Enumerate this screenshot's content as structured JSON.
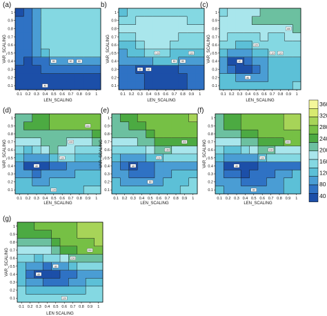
{
  "colors": {
    "levels": [
      "#1c4fa8",
      "#2f72c4",
      "#4a9dd4",
      "#5cc0d7",
      "#84d8e2",
      "#a9e6ec",
      "#6cc0a0",
      "#4caa42",
      "#76c045",
      "#a7d458",
      "#d8ea70",
      "#f4f79a"
    ],
    "contour_line": "#1a1a1a",
    "frame": "#000000"
  },
  "chart_data": {
    "type": "heatmap",
    "description_axes": {
      "xlabel": "LEN_SCALING",
      "ylabel": "VAR_SCALING",
      "x_ticks": [
        "0.1",
        "0.2",
        "0.3",
        "0.4",
        "0.5",
        "0.6",
        "0.7",
        "0.8",
        "0.9",
        "1"
      ],
      "y_ticks": [
        "0.1",
        "0.2",
        "0.3",
        "0.4",
        "0.5",
        "0.6",
        "0.7",
        "0.8",
        "0.9",
        "1"
      ],
      "xlim": [
        0.1,
        1.0
      ],
      "ylim": [
        0.1,
        1.0
      ]
    },
    "colorbar": {
      "labels": [
        "40",
        "80",
        "120",
        "160",
        "200",
        "240",
        "280",
        "320",
        "360"
      ],
      "levels": [
        40,
        80,
        120,
        160,
        200,
        240,
        280,
        320,
        360
      ]
    },
    "x": [
      0.1,
      0.2,
      0.3,
      0.4,
      0.5,
      0.6,
      0.7,
      0.8,
      0.9,
      1.0
    ],
    "y": [
      0.1,
      0.2,
      0.3,
      0.4,
      0.5,
      0.6,
      0.7,
      0.8,
      0.9,
      1.0
    ],
    "panels": [
      {
        "label": "(a)",
        "xlabel": "LEN_SCALING",
        "ylabel": "VAR_SCALING",
        "contour_labels": [
          "40",
          "80",
          "80",
          "80"
        ],
        "z": [
          [
            50,
            40,
            45,
            50,
            50,
            50,
            50,
            50,
            50,
            50
          ],
          [
            52,
            42,
            50,
            55,
            55,
            55,
            55,
            55,
            55,
            55
          ],
          [
            55,
            45,
            55,
            60,
            60,
            60,
            60,
            60,
            60,
            60
          ],
          [
            60,
            50,
            60,
            70,
            80,
            85,
            85,
            85,
            85,
            85
          ],
          [
            62,
            60,
            80,
            110,
            120,
            125,
            125,
            125,
            125,
            125
          ],
          [
            62,
            62,
            85,
            120,
            125,
            130,
            130,
            130,
            130,
            130
          ],
          [
            62,
            62,
            90,
            120,
            125,
            130,
            130,
            130,
            130,
            130
          ],
          [
            62,
            62,
            95,
            120,
            130,
            130,
            135,
            135,
            135,
            135
          ],
          [
            60,
            62,
            90,
            125,
            130,
            130,
            130,
            130,
            130,
            130
          ],
          [
            55,
            60,
            85,
            120,
            125,
            130,
            130,
            130,
            130,
            130
          ]
        ]
      },
      {
        "label": "b)",
        "xlabel": "LEN_SCALING",
        "ylabel": "VAR_SCALING",
        "contour_labels": [
          "40",
          "40",
          "120",
          "80",
          "80",
          "120"
        ],
        "z": [
          [
            70,
            70,
            70,
            55,
            40,
            45,
            40,
            50,
            70,
            70
          ],
          [
            72,
            70,
            60,
            50,
            45,
            45,
            40,
            50,
            70,
            72
          ],
          [
            72,
            65,
            50,
            40,
            40,
            45,
            50,
            60,
            75,
            75
          ],
          [
            80,
            80,
            85,
            95,
            100,
            100,
            100,
            95,
            90,
            90
          ],
          [
            95,
            100,
            110,
            120,
            120,
            120,
            118,
            118,
            118,
            118
          ],
          [
            110,
            115,
            125,
            140,
            140,
            140,
            130,
            130,
            130,
            130
          ],
          [
            135,
            135,
            140,
            145,
            145,
            142,
            140,
            138,
            138,
            138
          ],
          [
            140,
            140,
            145,
            150,
            155,
            150,
            150,
            150,
            148,
            148
          ],
          [
            120,
            130,
            140,
            140,
            140,
            140,
            140,
            140,
            138,
            138
          ],
          [
            110,
            120,
            130,
            135,
            135,
            135,
            135,
            135,
            132,
            132
          ]
        ]
      },
      {
        "label": "(c)",
        "xlabel": "LEN_SCALING",
        "ylabel": "VAR_SCALING",
        "contour_labels": [
          "40",
          "80",
          "120",
          "120",
          "120",
          "160"
        ],
        "z": [
          [
            110,
            110,
            105,
            100,
            100,
            105,
            110,
            115,
            118,
            120
          ],
          [
            100,
            100,
            90,
            85,
            80,
            90,
            100,
            110,
            115,
            118
          ],
          [
            90,
            70,
            50,
            45,
            60,
            80,
            100,
            110,
            115,
            118
          ],
          [
            85,
            55,
            40,
            60,
            80,
            95,
            100,
            105,
            110,
            115
          ],
          [
            105,
            80,
            80,
            95,
            110,
            118,
            120,
            120,
            125,
            125
          ],
          [
            130,
            120,
            110,
            115,
            125,
            125,
            125,
            125,
            130,
            130
          ],
          [
            140,
            130,
            120,
            125,
            130,
            140,
            130,
            130,
            140,
            145
          ],
          [
            145,
            140,
            140,
            140,
            150,
            155,
            150,
            150,
            155,
            160
          ],
          [
            140,
            140,
            150,
            155,
            160,
            162,
            162,
            162,
            165,
            168
          ],
          [
            135,
            140,
            145,
            150,
            155,
            160,
            160,
            162,
            165,
            170
          ]
        ]
      },
      {
        "label": "(d)",
        "xlabel": "LEN_SCALING",
        "ylabel": "VAR_SCALING",
        "contour_labels": [
          "40",
          "120",
          "120",
          "160",
          "200"
        ],
        "z": [
          [
            110,
            110,
            108,
            108,
            110,
            112,
            115,
            118,
            120,
            122
          ],
          [
            105,
            100,
            95,
            95,
            100,
            105,
            110,
            112,
            115,
            118
          ],
          [
            95,
            80,
            75,
            80,
            85,
            90,
            95,
            100,
            105,
            110
          ],
          [
            80,
            50,
            40,
            50,
            60,
            70,
            80,
            80,
            80,
            85
          ],
          [
            100,
            85,
            80,
            90,
            110,
            120,
            120,
            115,
            110,
            110
          ],
          [
            120,
            115,
            120,
            140,
            160,
            150,
            140,
            130,
            125,
            125
          ],
          [
            150,
            140,
            150,
            165,
            170,
            165,
            155,
            150,
            155,
            160
          ],
          [
            160,
            165,
            170,
            175,
            175,
            175,
            170,
            170,
            178,
            185
          ],
          [
            165,
            180,
            185,
            190,
            200,
            200,
            200,
            210,
            210,
            210
          ],
          [
            160,
            175,
            185,
            190,
            200,
            205,
            215,
            220,
            225,
            225
          ]
        ]
      },
      {
        "label": "(e)",
        "xlabel": "LEN_SCALING",
        "ylabel": "VAR_SCALING",
        "contour_labels": [
          "40",
          "80",
          "120",
          "160",
          "200"
        ],
        "z": [
          [
            110,
            108,
            105,
            100,
            100,
            105,
            110,
            115,
            120,
            125
          ],
          [
            100,
            95,
            85,
            80,
            80,
            90,
            100,
            110,
            118,
            122
          ],
          [
            95,
            80,
            70,
            65,
            70,
            80,
            90,
            100,
            110,
            115
          ],
          [
            90,
            70,
            45,
            60,
            70,
            80,
            80,
            85,
            90,
            95
          ],
          [
            105,
            95,
            85,
            95,
            100,
            110,
            120,
            120,
            120,
            122
          ],
          [
            130,
            125,
            125,
            135,
            150,
            165,
            160,
            150,
            140,
            140
          ],
          [
            150,
            150,
            150,
            160,
            170,
            180,
            185,
            185,
            185,
            190
          ],
          [
            160,
            165,
            170,
            175,
            190,
            200,
            210,
            215,
            215,
            220
          ],
          [
            165,
            175,
            185,
            195,
            205,
            215,
            220,
            225,
            230,
            235
          ],
          [
            170,
            180,
            190,
            200,
            205,
            210,
            220,
            225,
            235,
            240
          ]
        ]
      },
      {
        "label": "(f)",
        "xlabel": "LEN_SCALING",
        "ylabel": "VAR_SCALING",
        "contour_labels": [
          "40",
          "80",
          "120",
          "160",
          "200"
        ],
        "z": [
          [
            100,
            95,
            90,
            85,
            80,
            85,
            90,
            95,
            100,
            105
          ],
          [
            95,
            85,
            80,
            75,
            70,
            75,
            85,
            95,
            100,
            105
          ],
          [
            85,
            65,
            60,
            55,
            60,
            70,
            75,
            85,
            95,
            100
          ],
          [
            80,
            50,
            35,
            45,
            55,
            60,
            60,
            60,
            65,
            70
          ],
          [
            100,
            90,
            80,
            85,
            95,
            110,
            120,
            120,
            120,
            120
          ],
          [
            125,
            115,
            110,
            130,
            150,
            165,
            160,
            150,
            145,
            145
          ],
          [
            150,
            145,
            145,
            160,
            175,
            185,
            190,
            195,
            200,
            205
          ],
          [
            160,
            165,
            175,
            180,
            190,
            200,
            210,
            220,
            230,
            235
          ],
          [
            165,
            180,
            190,
            200,
            210,
            215,
            225,
            235,
            240,
            245
          ],
          [
            170,
            185,
            195,
            205,
            210,
            220,
            230,
            235,
            245,
            250
          ]
        ]
      },
      {
        "label": "(g)",
        "xlabel": "LEN SCALING",
        "ylabel": "VAR_SCALING",
        "contour_labels": [
          "40",
          "80",
          "120",
          "160",
          "200"
        ],
        "z": [
          [
            130,
            128,
            125,
            125,
            125,
            125,
            128,
            130,
            132,
            132
          ],
          [
            120,
            110,
            105,
            100,
            100,
            105,
            110,
            115,
            120,
            122
          ],
          [
            110,
            90,
            80,
            70,
            65,
            70,
            80,
            90,
            100,
            105
          ],
          [
            100,
            75,
            50,
            40,
            45,
            60,
            70,
            80,
            85,
            90
          ],
          [
            110,
            90,
            80,
            75,
            80,
            95,
            110,
            120,
            125,
            125
          ],
          [
            130,
            120,
            115,
            120,
            130,
            150,
            160,
            165,
            170,
            175
          ],
          [
            150,
            145,
            145,
            155,
            165,
            180,
            195,
            205,
            215,
            220
          ],
          [
            170,
            170,
            170,
            175,
            185,
            200,
            215,
            225,
            235,
            240
          ],
          [
            180,
            185,
            190,
            195,
            205,
            220,
            230,
            240,
            250,
            255
          ],
          [
            185,
            190,
            200,
            205,
            215,
            225,
            235,
            245,
            255,
            260
          ]
        ]
      }
    ]
  }
}
